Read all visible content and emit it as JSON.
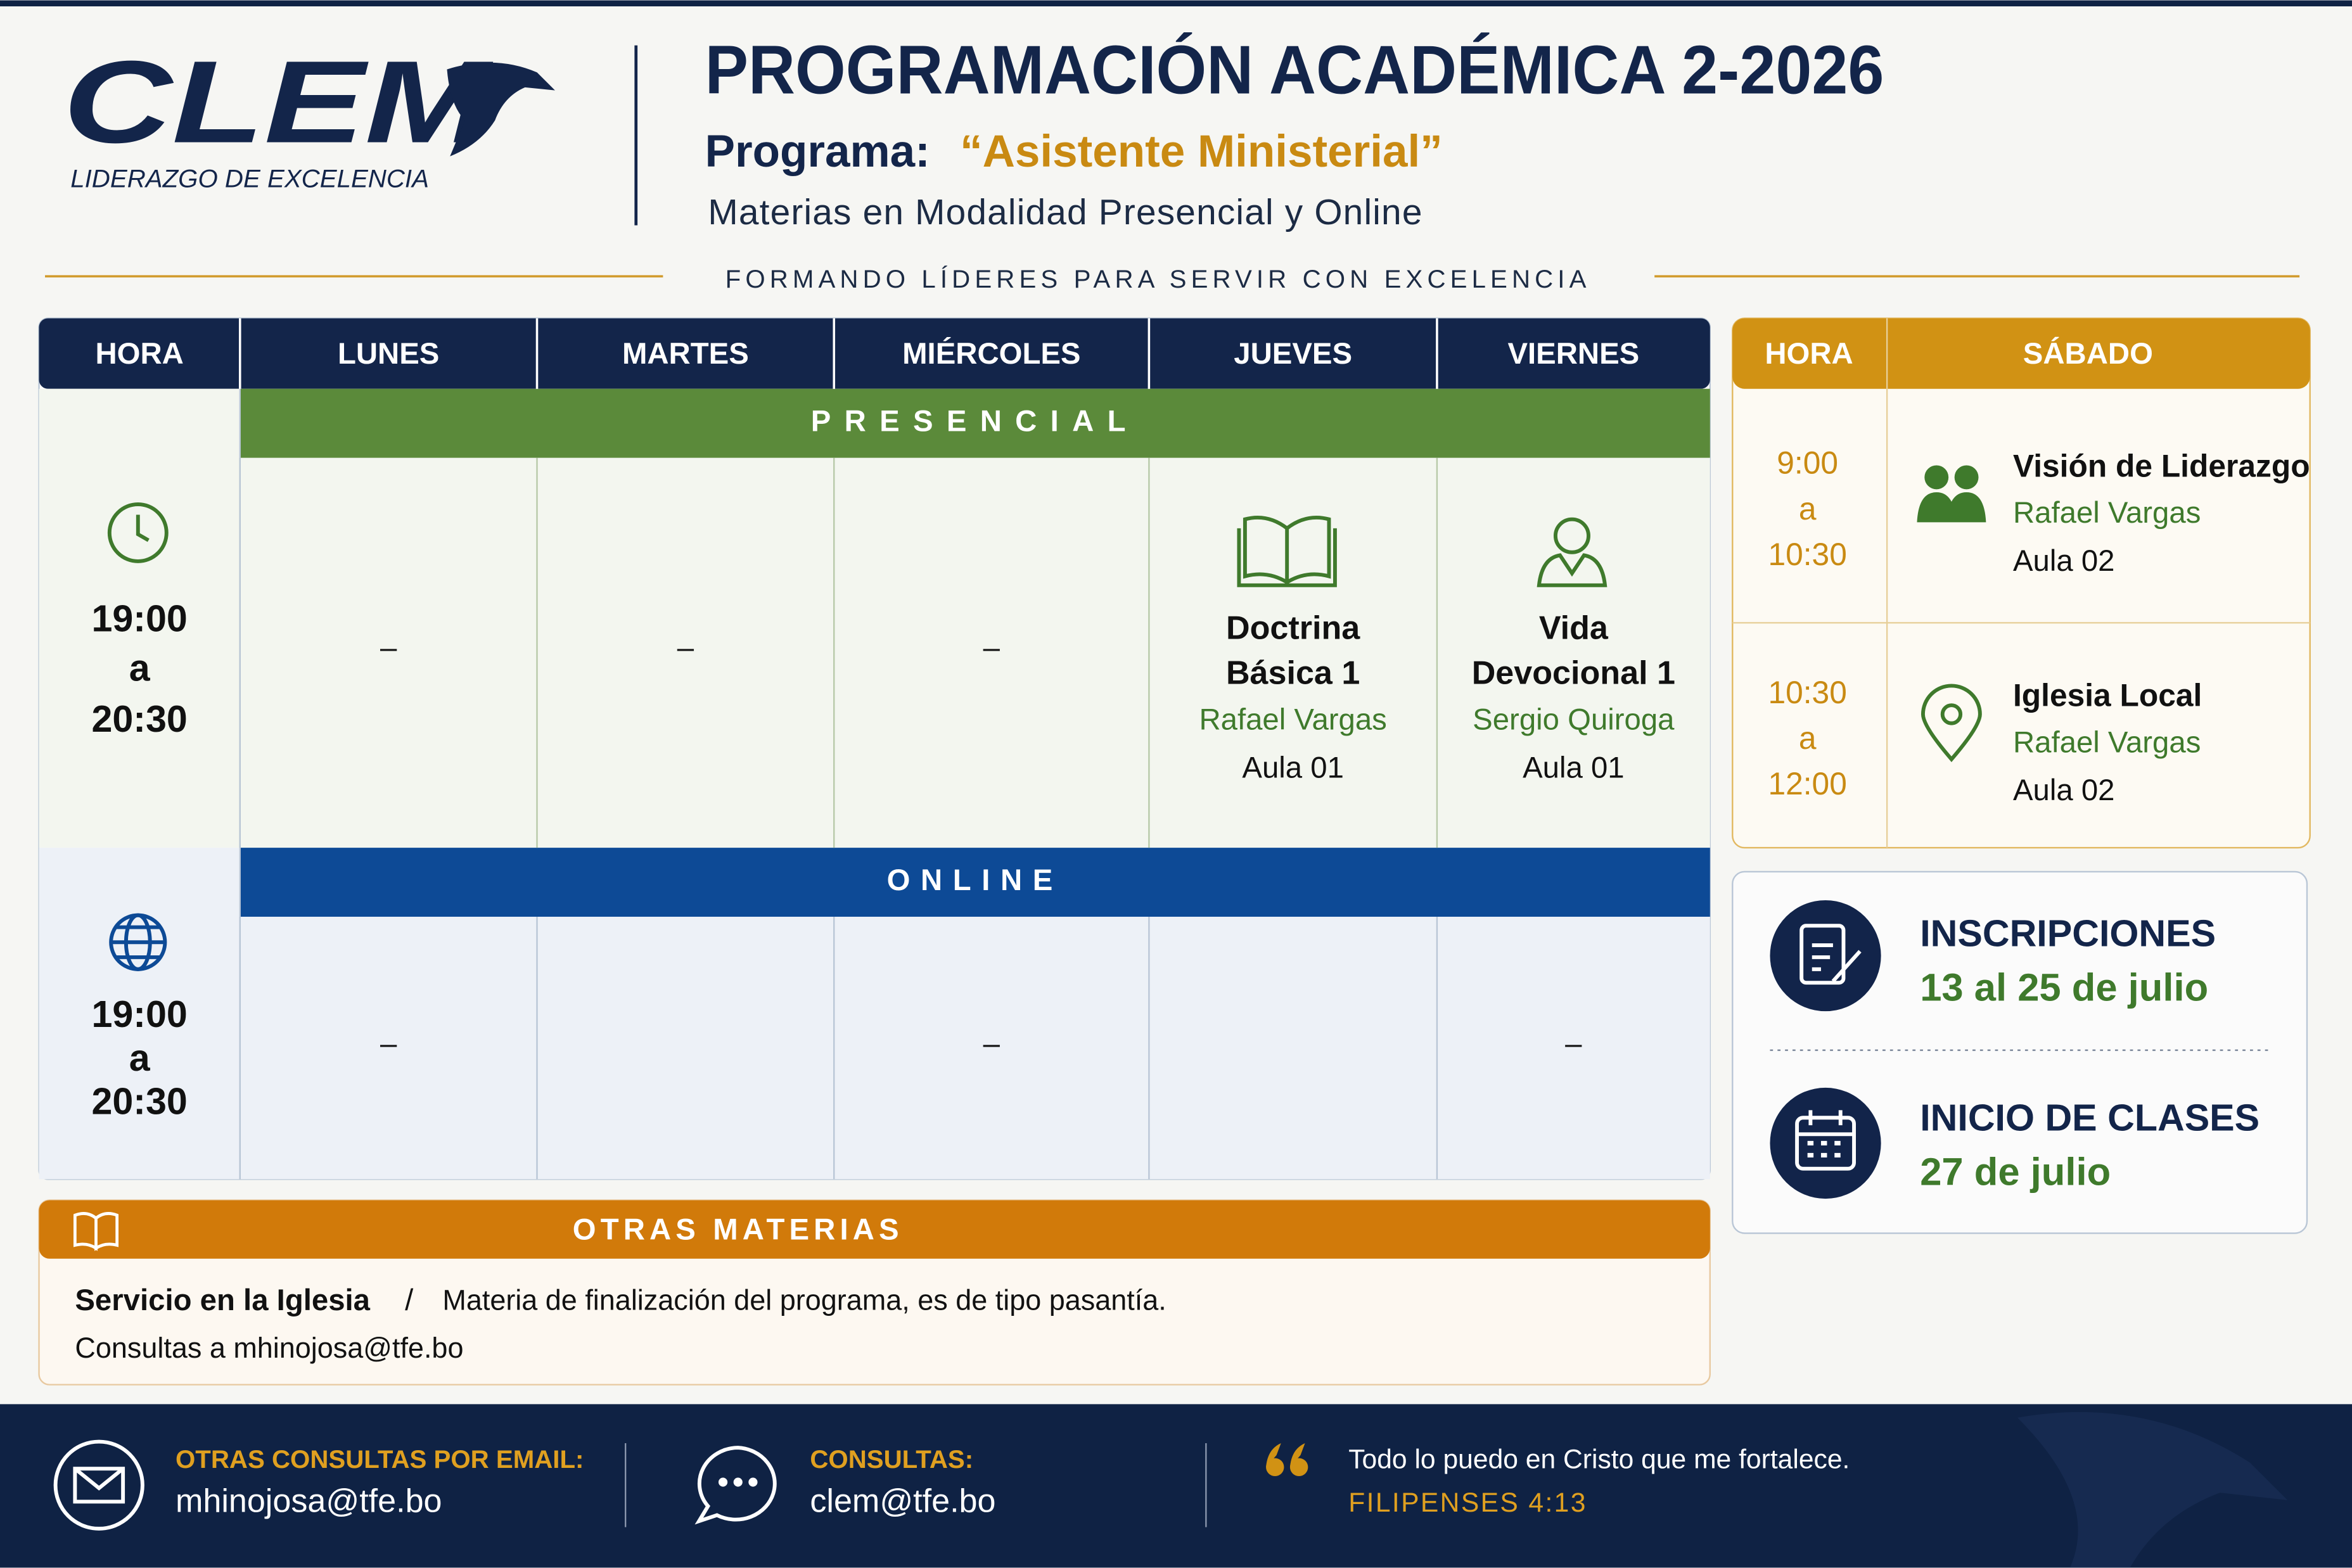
{
  "header": {
    "logo": "CLEM",
    "logo_tagline": "LIDERAZGO DE EXCELENCIA",
    "title": "PROGRAMACIÓN ACADÉMICA 2-2026",
    "program_label": "Programa:",
    "program_name": "“Asistente Ministerial”",
    "subtitle": "Materias en Modalidad Presencial y Online",
    "motto": "FORMANDO LÍDERES PARA SERVIR CON EXCELENCIA"
  },
  "weekday_table": {
    "columns": [
      "HORA",
      "LUNES",
      "MARTES",
      "MIÉRCOLES",
      "JUEVES",
      "VIERNES"
    ],
    "sections": [
      {
        "label": "PRESENCIAL",
        "time": [
          "19:00",
          "a",
          "20:30"
        ],
        "cells": [
          {
            "text": "–"
          },
          {
            "text": "–"
          },
          {
            "text": "–"
          },
          {
            "course": [
              "Doctrina",
              "Básica 1"
            ],
            "teacher": "Rafael Vargas",
            "room": "Aula 01"
          },
          {
            "course": [
              "Vida",
              "Devocional 1"
            ],
            "teacher": "Sergio Quiroga",
            "room": "Aula 01"
          }
        ]
      },
      {
        "label": "ONLINE",
        "time": [
          "19:00",
          "a",
          "20:30"
        ],
        "cells": [
          {
            "text": "–"
          },
          null,
          {
            "text": "–"
          },
          null,
          {
            "text": "–"
          }
        ]
      }
    ]
  },
  "saturday_table": {
    "columns": [
      "HORA",
      "SÁBADO"
    ],
    "slots": [
      {
        "time": [
          "9:00",
          "a",
          "10:30"
        ],
        "course": "Visión de Liderazgo",
        "teacher": "Rafael Vargas",
        "room": "Aula 02"
      },
      {
        "time": [
          "10:30",
          "a",
          "12:00"
        ],
        "course": "Iglesia Local",
        "teacher": "Rafael Vargas",
        "room": "Aula 02"
      }
    ]
  },
  "dates": [
    {
      "label": "INSCRIPCIONES",
      "value": "13 al 25 de julio"
    },
    {
      "label": "INICIO DE CLASES",
      "value": "27 de julio"
    }
  ],
  "other_subjects": {
    "title": "OTRAS MATERIAS",
    "course": "Servicio en la Iglesia",
    "separator": "/",
    "description": "Materia de finalización del programa, es de tipo pasantía.",
    "contact": "Consultas a mhinojosa@tfe.bo"
  },
  "footer": {
    "email_label": "OTRAS CONSULTAS POR EMAIL:",
    "email": "mhinojosa@tfe.bo",
    "contact_label": "CONSULTAS:",
    "contact_email": "clem@tfe.bo",
    "quote": "Todo lo puedo en Cristo que me fortalece.",
    "reference": "FILIPENSES 4:13"
  }
}
